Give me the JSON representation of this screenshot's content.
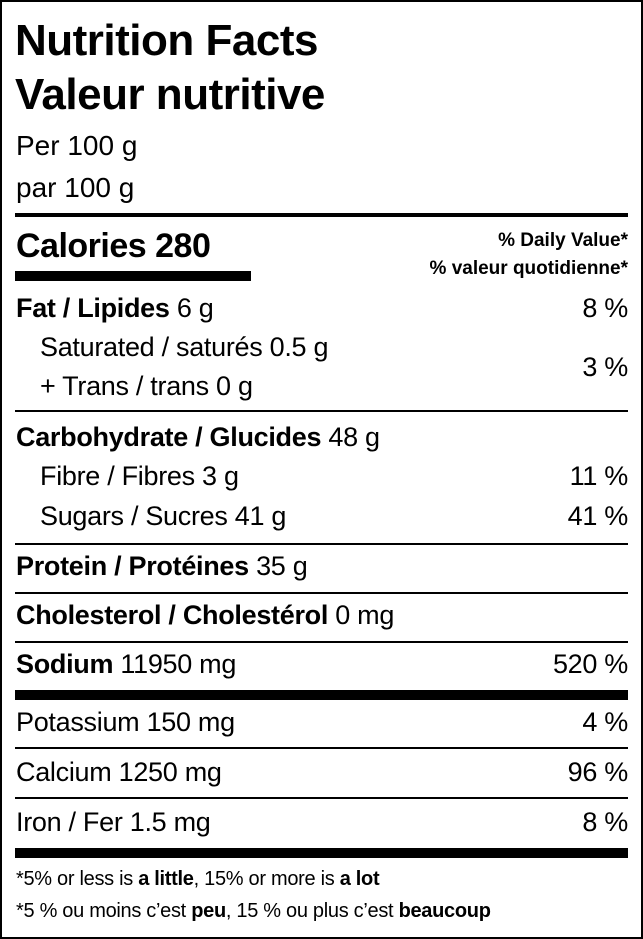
{
  "title_en": "Nutrition Facts",
  "title_fr": "Valeur nutritive",
  "serving_en": "Per 100 g",
  "serving_fr": "par 100 g",
  "calories": {
    "label": "Calories",
    "value": "280"
  },
  "dv_header_en": "% Daily Value*",
  "dv_header_fr": "% valeur quotidienne*",
  "nutrients": {
    "fat": {
      "label": "Fat / Lipides",
      "amount": "6 g",
      "dv": "8 %"
    },
    "saturated": {
      "label": "Saturated / saturés",
      "amount": "0.5 g"
    },
    "trans": {
      "label": "+ Trans / trans",
      "amount": "0 g"
    },
    "sat_trans_dv": "3 %",
    "carbohydrate": {
      "label": "Carbohydrate / Glucides",
      "amount": "48 g"
    },
    "fibre": {
      "label": "Fibre / Fibres",
      "amount": "3 g",
      "dv": "11 %"
    },
    "sugars": {
      "label": "Sugars / Sucres",
      "amount": "41 g",
      "dv": "41 %"
    },
    "protein": {
      "label": "Protein / Protéines",
      "amount": "35 g"
    },
    "cholesterol": {
      "label": "Cholesterol / Cholestérol",
      "amount": "0 mg"
    },
    "sodium": {
      "label": "Sodium",
      "amount": "11950 mg",
      "dv": "520 %"
    },
    "potassium": {
      "label": "Potassium",
      "amount": "150 mg",
      "dv": "4 %"
    },
    "calcium": {
      "label": "Calcium",
      "amount": "1250 mg",
      "dv": "96 %"
    },
    "iron": {
      "label": "Iron / Fer",
      "amount": "1.5 mg",
      "dv": "8 %"
    }
  },
  "footnote_en": {
    "a": "*5% or less is ",
    "b": "a little",
    "c": ", 15% or more is ",
    "d": "a lot"
  },
  "footnote_fr": {
    "a": "*5 % ou moins c’est ",
    "b": "peu",
    "c": ", 15 % ou plus c’est ",
    "d": "beaucoup"
  }
}
